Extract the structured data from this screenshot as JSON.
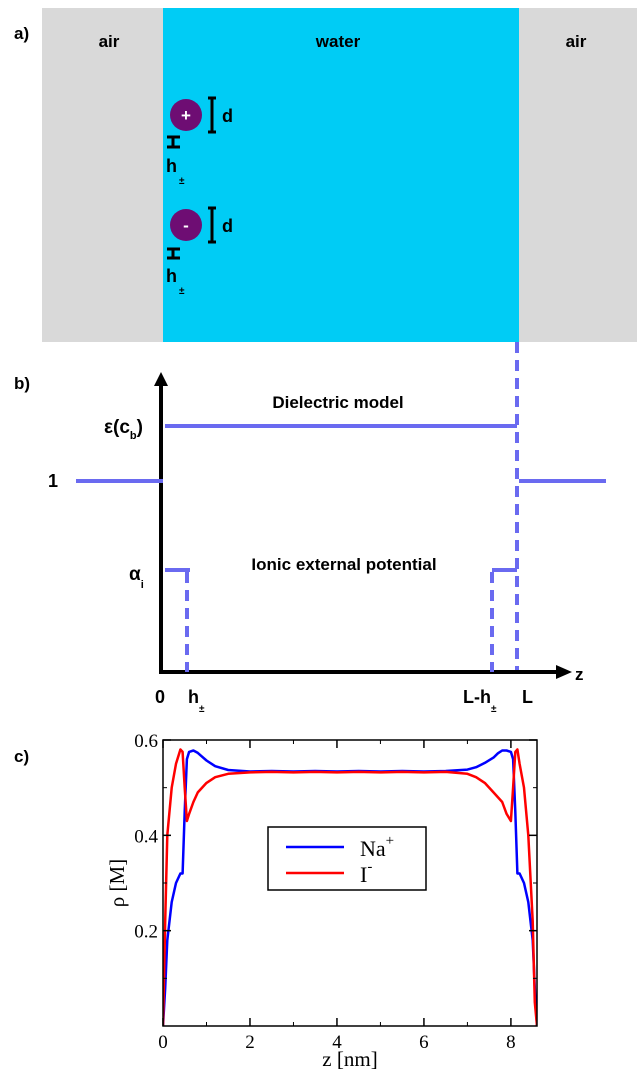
{
  "colors": {
    "air": "#d9d9d9",
    "water": "#00ccf5",
    "ion": "#6e0d73",
    "model_line": "#6a6af0",
    "na_series": "#0000ff",
    "i_series": "#ff0000"
  },
  "panel_a": {
    "label": "a)",
    "air_left": "air",
    "water": "water",
    "air_right": "air",
    "cation_symbol": "+",
    "anion_symbol": "-",
    "diameter_label": "d",
    "distance_label_main": "h",
    "distance_label_sub": "±"
  },
  "panel_b": {
    "label": "b)",
    "dielectric_title": "Dielectric model",
    "ionic_title": "Ionic external potential",
    "eps_main": "ε(c",
    "eps_sub": "b",
    "eps_close": ")",
    "one": "1",
    "alpha_main": "α",
    "alpha_sub": "i",
    "z_axis": "z",
    "x_zero": "0",
    "x_h_main": "h",
    "x_h_sub": "±",
    "x_lh_main": "L-h",
    "x_lh_sub": "±",
    "x_L": "L"
  },
  "panel_c": {
    "label": "c)"
  },
  "chart_data": {
    "type": "line",
    "xlabel": "z [nm]",
    "ylabel": "ρ [M]",
    "xlim": [
      0,
      8.6
    ],
    "ylim": [
      0,
      0.6
    ],
    "xticks": [
      "0",
      "2",
      "4",
      "6",
      "8"
    ],
    "yticks": [
      "0.2",
      "0.4",
      "0.6"
    ],
    "legend_position": "center",
    "series": [
      {
        "name": "Na",
        "name_sup": "+",
        "color": "#0000ff",
        "x": [
          0.0,
          0.05,
          0.1,
          0.2,
          0.3,
          0.4,
          0.45,
          0.5,
          0.55,
          0.6,
          0.7,
          0.8,
          0.9,
          1.0,
          1.2,
          1.5,
          2.0,
          2.5,
          3.0,
          3.5,
          4.0,
          4.5,
          5.0,
          5.5,
          6.0,
          6.5,
          7.0,
          7.2,
          7.4,
          7.6,
          7.7,
          7.8,
          7.9,
          8.0,
          8.05,
          8.1,
          8.15,
          8.2,
          8.3,
          8.4,
          8.5,
          8.55,
          8.6
        ],
        "y": [
          0.0,
          0.08,
          0.18,
          0.26,
          0.3,
          0.32,
          0.32,
          0.45,
          0.56,
          0.575,
          0.578,
          0.573,
          0.565,
          0.557,
          0.545,
          0.537,
          0.534,
          0.535,
          0.534,
          0.535,
          0.534,
          0.535,
          0.534,
          0.535,
          0.534,
          0.535,
          0.538,
          0.543,
          0.552,
          0.563,
          0.572,
          0.578,
          0.578,
          0.575,
          0.56,
          0.45,
          0.32,
          0.32,
          0.3,
          0.26,
          0.18,
          0.08,
          0.0
        ]
      },
      {
        "name": "I",
        "name_sup": "-",
        "color": "#ff0000",
        "x": [
          0.0,
          0.05,
          0.1,
          0.2,
          0.3,
          0.4,
          0.45,
          0.5,
          0.55,
          0.6,
          0.7,
          0.8,
          1.0,
          1.2,
          1.5,
          2.0,
          2.5,
          3.0,
          3.5,
          4.0,
          4.5,
          5.0,
          5.5,
          6.0,
          6.5,
          7.0,
          7.2,
          7.4,
          7.6,
          7.8,
          7.9,
          8.0,
          8.05,
          8.1,
          8.15,
          8.2,
          8.3,
          8.4,
          8.5,
          8.55,
          8.6
        ],
        "y": [
          0.0,
          0.22,
          0.4,
          0.5,
          0.55,
          0.58,
          0.575,
          0.5,
          0.43,
          0.445,
          0.47,
          0.49,
          0.51,
          0.522,
          0.529,
          0.532,
          0.533,
          0.532,
          0.533,
          0.532,
          0.533,
          0.532,
          0.533,
          0.532,
          0.533,
          0.529,
          0.522,
          0.51,
          0.49,
          0.47,
          0.445,
          0.43,
          0.5,
          0.575,
          0.58,
          0.55,
          0.5,
          0.4,
          0.22,
          0.05,
          0.0
        ]
      }
    ]
  }
}
